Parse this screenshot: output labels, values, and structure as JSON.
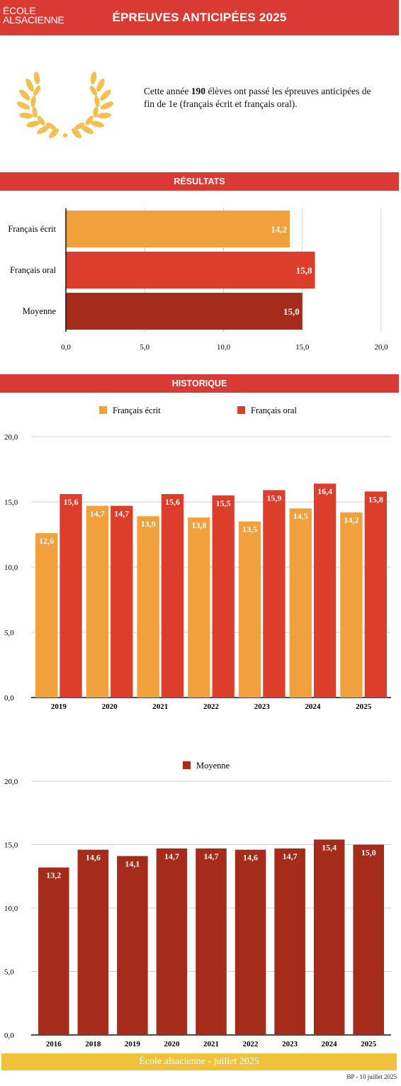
{
  "header": {
    "logo_line1": "ÉCOLE",
    "logo_line2": "ALSACIENNE",
    "title": "ÉPREUVES ANTICIPÉES 2025"
  },
  "intro": {
    "text_before": "Cette année ",
    "count": "190",
    "text_after": " élèves ont passé les épreuves anticipées de fin de 1e (français écrit et français oral)."
  },
  "sections": {
    "results": "RÉSULTATS",
    "history": "HISTORIQUE"
  },
  "colors": {
    "ecrit": "#f0a03c",
    "oral": "#dd3e2c",
    "moyenne": "#a52c1a",
    "band": "#d93a33",
    "footer": "#f0c13b"
  },
  "chart_data": [
    {
      "type": "bar",
      "orientation": "horizontal",
      "categories": [
        "Français écrit",
        "Français oral",
        "Moyenne"
      ],
      "values": [
        14.2,
        15.8,
        15.0
      ],
      "labels": [
        "14,2",
        "15,8",
        "15,0"
      ],
      "xlim": [
        0,
        20
      ],
      "ticks": [
        "0,0",
        "5,0",
        "10,0",
        "15,0",
        "20,0"
      ],
      "grid": true
    },
    {
      "type": "bar",
      "categories": [
        "2019",
        "2020",
        "2021",
        "2022",
        "2023",
        "2024",
        "2025"
      ],
      "series": [
        {
          "name": "Français écrit",
          "values": [
            12.6,
            14.7,
            13.9,
            13.8,
            13.5,
            14.5,
            14.2
          ],
          "labels": [
            "12,6",
            "14,7",
            "13,9",
            "13,8",
            "13,5",
            "14,5",
            "14,2"
          ]
        },
        {
          "name": "Français oral",
          "values": [
            15.6,
            14.7,
            15.6,
            15.5,
            15.9,
            16.4,
            15.8
          ],
          "labels": [
            "15,6",
            "14,7",
            "15,6",
            "15,5",
            "15,9",
            "16,4",
            "15,8"
          ]
        }
      ],
      "ylim": [
        0,
        20
      ],
      "ticks": [
        "0,0",
        "5,0",
        "10,0",
        "15,0",
        "20,0"
      ],
      "legend": "top",
      "grid": true
    },
    {
      "type": "bar",
      "categories": [
        "2016",
        "2018",
        "2019",
        "2020",
        "2021",
        "2022",
        "2023",
        "2024",
        "2025"
      ],
      "series": [
        {
          "name": "Moyenne",
          "values": [
            13.2,
            14.6,
            14.1,
            14.7,
            14.7,
            14.6,
            14.7,
            15.4,
            15.0
          ],
          "labels": [
            "13,2",
            "14,6",
            "14,1",
            "14,7",
            "14,7",
            "14,6",
            "14,7",
            "15,4",
            "15,0"
          ]
        }
      ],
      "ylim": [
        0,
        20
      ],
      "ticks": [
        "0,0",
        "5,0",
        "10,0",
        "15,0",
        "20,0"
      ],
      "legend": "top",
      "grid": true
    }
  ],
  "footer": {
    "text": "École alsacienne - juillet 2025",
    "credit": "BP - 10 juillet 2025"
  }
}
